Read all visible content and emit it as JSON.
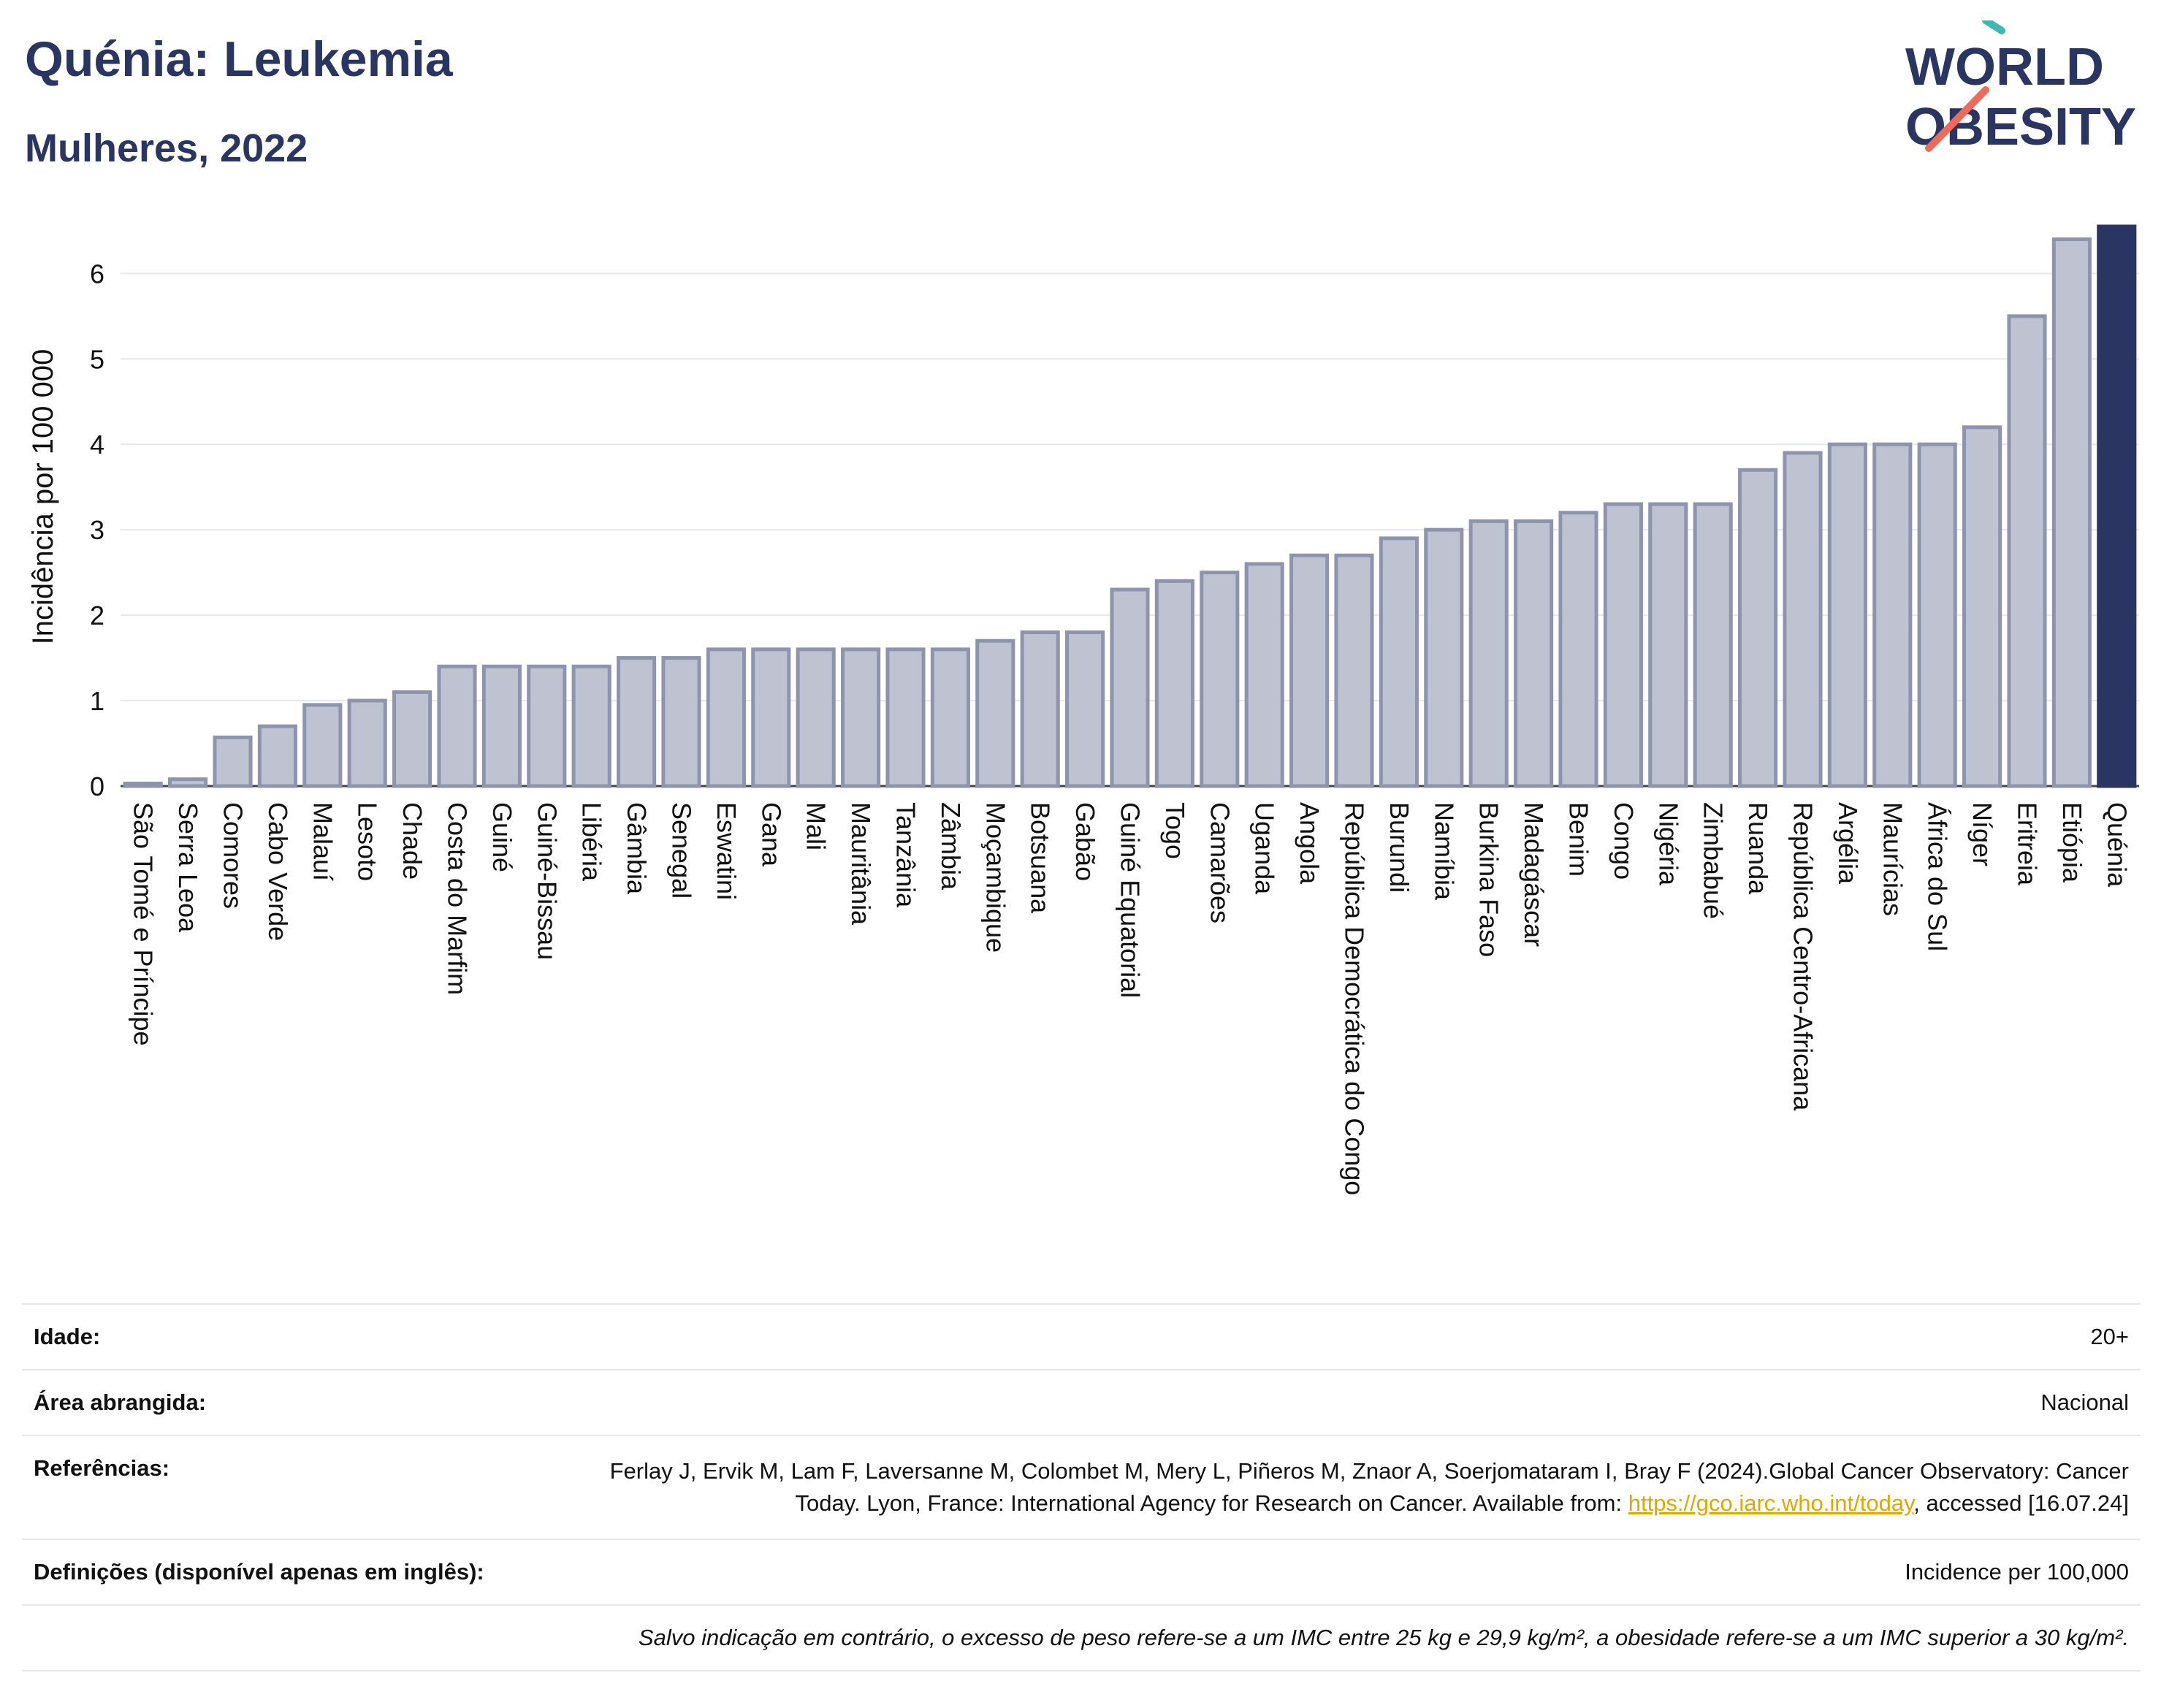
{
  "header": {
    "title": "Quénia: Leukemia",
    "subtitle": "Mulheres, 2022"
  },
  "logo": {
    "line1": "WORLD",
    "line2": "OBESITY"
  },
  "colors": {
    "bar_fill": "#bfc3d1",
    "bar_stroke": "#8e94ad",
    "highlight": "#2b3561",
    "text": "#2b3561",
    "grid": "#e6e8ee",
    "logo_teal": "#3fb8b2",
    "logo_coral": "#ef6a5b",
    "link": "#e0a800"
  },
  "chart_data": {
    "type": "bar",
    "ylabel": "Incidência por 100 000",
    "ylim": [
      0,
      6.55
    ],
    "yticks": [
      0,
      1,
      2,
      3,
      4,
      5,
      6
    ],
    "grid": true,
    "highlight_category": "Quénia",
    "categories": [
      "São Tomé e Príncipe",
      "Serra Leoa",
      "Comores",
      "Cabo Verde",
      "Malauí",
      "Lesoto",
      "Chade",
      "Costa do Marfim",
      "Guiné",
      "Guiné-Bissau",
      "Libéria",
      "Gâmbia",
      "Senegal",
      "Eswatini",
      "Gana",
      "Mali",
      "Mauritânia",
      "Tanzânia",
      "Zâmbia",
      "Moçambique",
      "Botsuana",
      "Gabão",
      "Guiné Equatorial",
      "Togo",
      "Camarões",
      "Uganda",
      "Angola",
      "República Democrática do Congo",
      "Burundi",
      "Namíbia",
      "Burkina Faso",
      "Madagáscar",
      "Benim",
      "Congo",
      "Nigéria",
      "Zimbabué",
      "Ruanda",
      "República Centro-Africana",
      "Argélia",
      "Maurícias",
      "África do Sul",
      "Níger",
      "Eritreia",
      "Etiópia",
      "Quénia"
    ],
    "values": [
      0.03,
      0.08,
      0.57,
      0.7,
      0.95,
      1.0,
      1.1,
      1.4,
      1.4,
      1.4,
      1.4,
      1.5,
      1.5,
      1.6,
      1.6,
      1.6,
      1.6,
      1.6,
      1.6,
      1.7,
      1.8,
      1.8,
      2.3,
      2.4,
      2.5,
      2.6,
      2.7,
      2.7,
      2.9,
      3.0,
      3.1,
      3.1,
      3.2,
      3.3,
      3.3,
      3.3,
      3.7,
      3.9,
      4.0,
      4.0,
      4.0,
      4.2,
      5.5,
      6.4,
      6.55
    ]
  },
  "info": {
    "age_label": "Idade:",
    "age_value": "20+",
    "area_label": "Área abrangida:",
    "area_value": "Nacional",
    "ref_label": "Referências:",
    "ref_text_1": "Ferlay J, Ervik M, Lam F, Laversanne M, Colombet M, Mery L, Piñeros M, Znaor A, Soerjomataram I, Bray F (2024).Global Cancer Observatory: Cancer Today. Lyon, France: International Agency for Research on Cancer. Available from: ",
    "ref_link": "https://gco.iarc.who.int/today",
    "ref_text_2": ", accessed [16.07.24]",
    "def_label": "Definições (disponível apenas em inglês):",
    "def_value": "Incidence per 100,000",
    "footnote": "Salvo indicação em contrário, o excesso de peso refere-se a um IMC entre 25 kg e 29,9 kg/m², a obesidade refere-se a um IMC superior a 30 kg/m²."
  }
}
